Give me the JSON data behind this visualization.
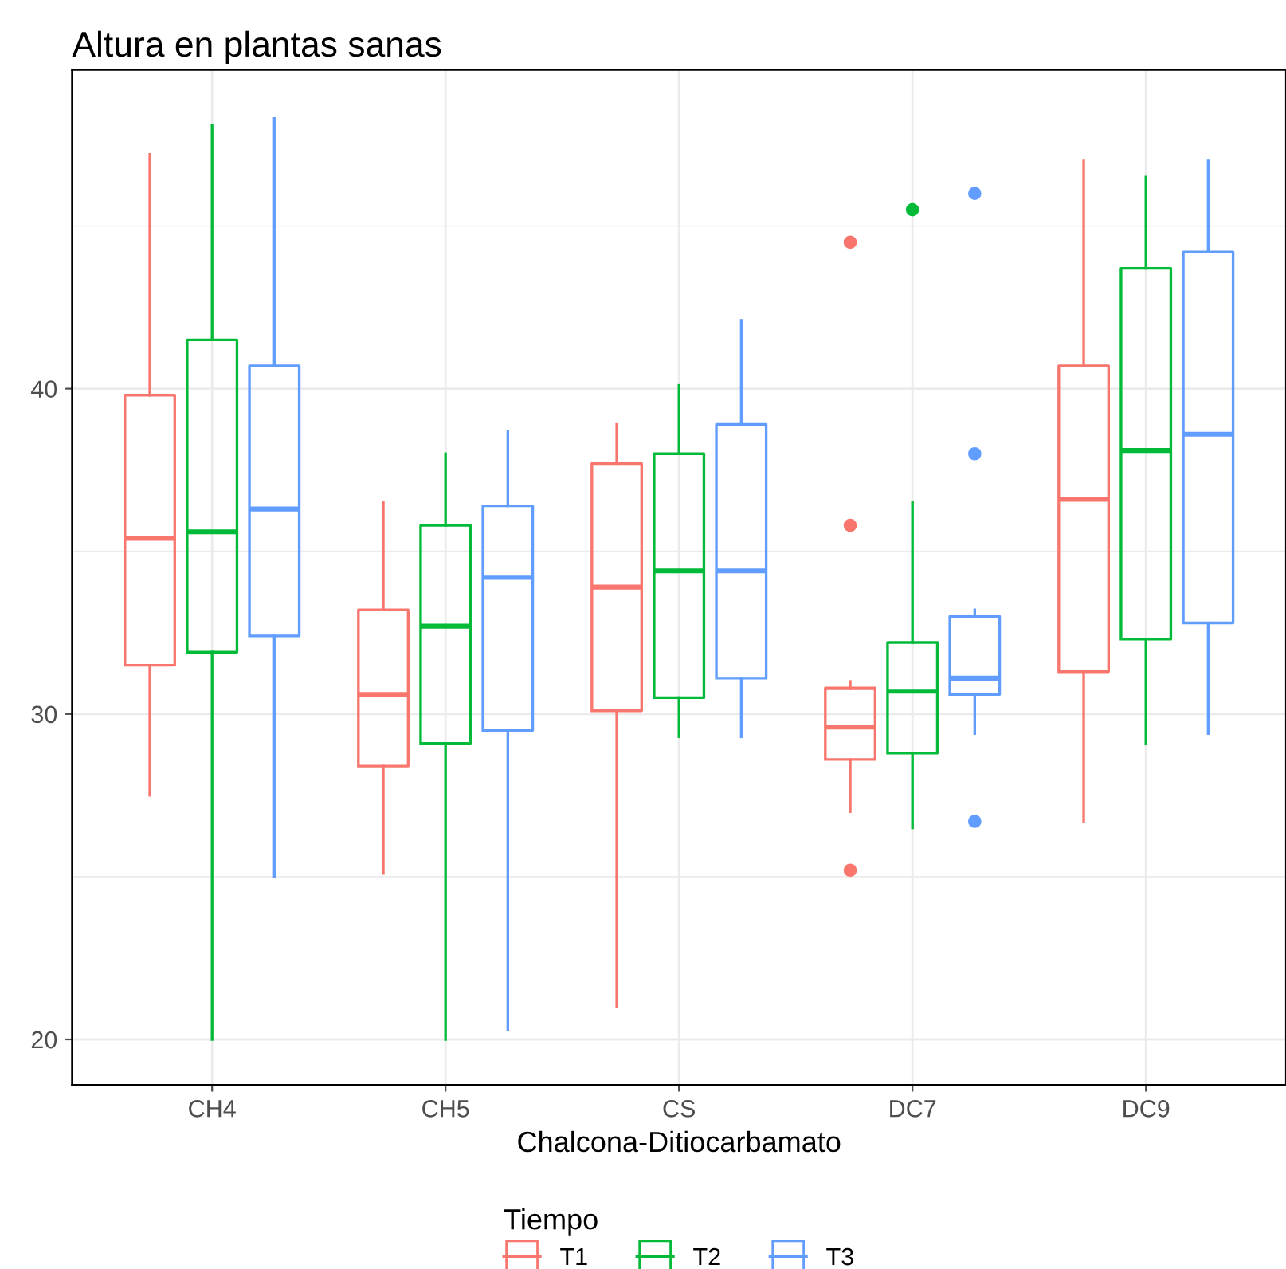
{
  "chart_data": {
    "type": "box",
    "title": "Altura en plantas sanas",
    "xlabel": "Chalcona-Ditiocarbamato",
    "legend_title": "Tiempo",
    "legend": "bottom",
    "grid": true,
    "categories": [
      "CH4",
      "CH5",
      "CS",
      "DC7",
      "DC9"
    ],
    "ylim": [
      18.6,
      49.8
    ],
    "yticks": [
      20,
      30,
      40
    ],
    "series": [
      {
        "name": "T1",
        "color": "#f8766d",
        "boxes": [
          {
            "low": 27.5,
            "q1": 31.5,
            "median": 35.4,
            "q3": 39.8,
            "high": 47.2
          },
          {
            "low": 25.1,
            "q1": 28.4,
            "median": 30.6,
            "q3": 33.2,
            "high": 36.5
          },
          {
            "low": 21.0,
            "q1": 30.1,
            "median": 33.9,
            "q3": 37.7,
            "high": 38.9
          },
          {
            "low": 27.0,
            "q1": 28.6,
            "median": 29.6,
            "q3": 30.8,
            "high": 31.0,
            "outliers": [
              44.5,
              35.8,
              25.2
            ]
          },
          {
            "low": 26.7,
            "q1": 31.3,
            "median": 36.6,
            "q3": 40.7,
            "high": 47.0
          }
        ]
      },
      {
        "name": "T2",
        "color": "#00ba38",
        "boxes": [
          {
            "low": 20.0,
            "q1": 31.9,
            "median": 35.6,
            "q3": 41.5,
            "high": 48.1
          },
          {
            "low": 20.0,
            "q1": 29.1,
            "median": 32.7,
            "q3": 35.8,
            "high": 38.0
          },
          {
            "low": 29.3,
            "q1": 30.5,
            "median": 34.4,
            "q3": 38.0,
            "high": 40.1
          },
          {
            "low": 26.5,
            "q1": 28.8,
            "median": 30.7,
            "q3": 32.2,
            "high": 36.5,
            "outliers": [
              45.5
            ]
          },
          {
            "low": 29.1,
            "q1": 32.3,
            "median": 38.1,
            "q3": 43.7,
            "high": 46.5
          }
        ]
      },
      {
        "name": "T3",
        "color": "#619cff",
        "boxes": [
          {
            "low": 25.0,
            "q1": 32.4,
            "median": 36.3,
            "q3": 40.7,
            "high": 48.3
          },
          {
            "low": 20.3,
            "q1": 29.5,
            "median": 34.2,
            "q3": 36.4,
            "high": 38.7
          },
          {
            "low": 29.3,
            "q1": 31.1,
            "median": 34.4,
            "q3": 38.9,
            "high": 42.1
          },
          {
            "low": 29.4,
            "q1": 30.6,
            "median": 31.1,
            "q3": 33.0,
            "high": 33.2,
            "outliers": [
              46.0,
              38.0,
              26.7
            ]
          },
          {
            "low": 29.4,
            "q1": 32.8,
            "median": 38.6,
            "q3": 44.2,
            "high": 47.0
          }
        ]
      }
    ]
  }
}
